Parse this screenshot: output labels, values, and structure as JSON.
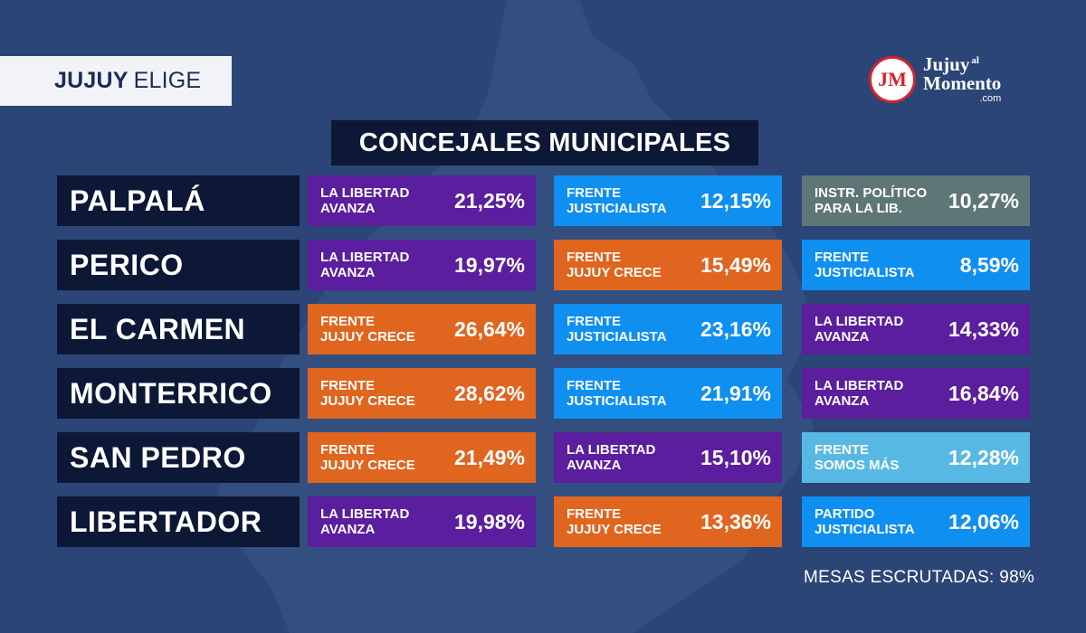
{
  "header": {
    "brand_bold": "JUJUY",
    "brand_light": "ELIGE",
    "title": "CONCEJALES MUNICIPALES"
  },
  "logo": {
    "initials": "JM",
    "line1": "Jujuy",
    "line1_small": "al",
    "line2": "Momento",
    "line3": ".com"
  },
  "colors": {
    "background": "#2b4577",
    "dark_box": "#0c1836",
    "la_libertad_avanza": "#5a1e9e",
    "frente_justicialista": "#0f8ff0",
    "frente_jujuy_crece": "#e0651f",
    "instr_politico": "#5f7676",
    "frente_somos_mas": "#57b9e3",
    "partido_justicialista": "#0f8ff0"
  },
  "rows": [
    {
      "city": "PALPALÁ",
      "results": [
        {
          "party": "LA LIBERTAD\nAVANZA",
          "pct": "21,25%",
          "color": "#5a1e9e"
        },
        {
          "party": "FRENTE\nJUSTICIALISTA",
          "pct": "12,15%",
          "color": "#0f8ff0"
        },
        {
          "party": "INSTR. POLÍTICO\nPARA LA LIB.",
          "pct": "10,27%",
          "color": "#5f7676"
        }
      ]
    },
    {
      "city": "PERICO",
      "results": [
        {
          "party": "LA LIBERTAD\nAVANZA",
          "pct": "19,97%",
          "color": "#5a1e9e"
        },
        {
          "party": "FRENTE\nJUJUY CRECE",
          "pct": "15,49%",
          "color": "#e0651f"
        },
        {
          "party": "FRENTE\nJUSTICIALISTA",
          "pct": "8,59%",
          "color": "#0f8ff0"
        }
      ]
    },
    {
      "city": "EL CARMEN",
      "results": [
        {
          "party": "FRENTE\nJUJUY CRECE",
          "pct": "26,64%",
          "color": "#e0651f"
        },
        {
          "party": "FRENTE\nJUSTICIALISTA",
          "pct": "23,16%",
          "color": "#0f8ff0"
        },
        {
          "party": "LA LIBERTAD\nAVANZA",
          "pct": "14,33%",
          "color": "#5a1e9e"
        }
      ]
    },
    {
      "city": "MONTERRICO",
      "results": [
        {
          "party": "FRENTE\nJUJUY CRECE",
          "pct": "28,62%",
          "color": "#e0651f"
        },
        {
          "party": "FRENTE\nJUSTICIALISTA",
          "pct": "21,91%",
          "color": "#0f8ff0"
        },
        {
          "party": "LA LIBERTAD\nAVANZA",
          "pct": "16,84%",
          "color": "#5a1e9e"
        }
      ]
    },
    {
      "city": "SAN PEDRO",
      "results": [
        {
          "party": "FRENTE\nJUJUY CRECE",
          "pct": "21,49%",
          "color": "#e0651f"
        },
        {
          "party": "LA LIBERTAD\nAVANZA",
          "pct": "15,10%",
          "color": "#5a1e9e"
        },
        {
          "party": "FRENTE\nSOMOS MÁS",
          "pct": "12,28%",
          "color": "#57b9e3"
        }
      ]
    },
    {
      "city": "LIBERTADOR",
      "results": [
        {
          "party": "LA LIBERTAD\nAVANZA",
          "pct": "19,98%",
          "color": "#5a1e9e"
        },
        {
          "party": "FRENTE\nJUJUY CRECE",
          "pct": "13,36%",
          "color": "#e0651f"
        },
        {
          "party": "PARTIDO\nJUSTICIALISTA",
          "pct": "12,06%",
          "color": "#0f8ff0"
        }
      ]
    }
  ],
  "footer": {
    "text": "MESAS ESCRUTADAS: 98%"
  }
}
